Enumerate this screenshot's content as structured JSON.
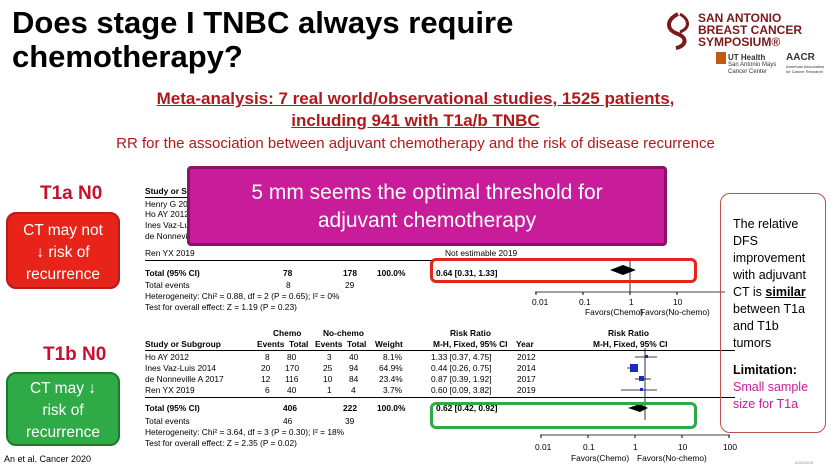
{
  "title": "Does stage I TNBC always require chemotherapy?",
  "logo": {
    "line1": "SAN ANTONIO",
    "line2": "BREAST CANCER",
    "line3": "SYMPOSIUM®",
    "ut_health": "UT Health",
    "ut_sub": "San Antonio Mays Cancer Center",
    "aacr": "AACR",
    "aacr_sub": "American Association for Cancer Research"
  },
  "subtitle": {
    "line1": "Meta-analysis: 7 real world/observational studies, 1525 patients,",
    "line2": "including 941 with T1a/b TNBC",
    "description": "RR for the association between adjuvant chemotherapy and the risk of disease recurrence"
  },
  "left": {
    "t1a_heading": "T1a N0",
    "t1a_box": [
      "CT may not",
      "↓ risk of",
      "recurrence"
    ],
    "t1b_heading": "T1b N0",
    "t1b_box": [
      "CT may ↓",
      "risk of",
      "recurrence"
    ]
  },
  "banner": {
    "line1": "5 mm seems the optimal threshold for",
    "line2": "adjuvant chemotherapy"
  },
  "right_box": {
    "text1": "The relative DFS improvement with adjuvant CT is",
    "similar": "similar",
    "text2": "between T1a and T1b tumors",
    "limitation_label": "Limitation:",
    "limitation_text": "Small sample size for T1a"
  },
  "forest_top": {
    "header_partial": "Study or S",
    "studies": [
      "Henry G 20",
      "Ho AY 2012",
      "Ines Vaz-Lu",
      "de Nonnevil",
      "Ren YX 2019"
    ],
    "not_estimable": "Not estimable  2019",
    "total_label": "Total (95% CI)",
    "total_chemo": "78",
    "total_nochemo": "178",
    "total_weight": "100.0%",
    "total_rr": "0.64 [0.31, 1.33]",
    "events_label": "Total events",
    "events_chemo": "8",
    "events_nochemo": "29",
    "heterogeneity": "Heterogeneity: Chi² = 0.88, df = 2 (P = 0.65); I² = 0%",
    "overall": "Test for overall effect: Z = 1.19 (P = 0.23)",
    "axis_ticks": [
      "0.01",
      "0.1",
      "1",
      "10"
    ],
    "favors_chemo": "Favors(Chemo)",
    "favors_nochemo": "Favors(No-chemo)"
  },
  "forest_bottom": {
    "group_chemo": "Chemo",
    "group_nochemo": "No-chemo",
    "group_rr": "Risk Ratio",
    "group_rr2": "Risk Ratio",
    "col_study": "Study or Subgroup",
    "col_events": "Events",
    "col_total": "Total",
    "col_events2": "Events",
    "col_total2": "Total",
    "col_weight": "Weight",
    "col_method": "M-H, Fixed, 95% CI",
    "col_year": "Year",
    "col_method2": "M-H, Fixed, 95% CI",
    "rows": [
      {
        "study": "Ho AY 2012",
        "e1": "8",
        "t1": "80",
        "e2": "3",
        "t2": "40",
        "w": "8.1%",
        "rr": "1.33 [0.37, 4.75]",
        "year": "2012"
      },
      {
        "study": "Ines Vaz-Luis 2014",
        "e1": "20",
        "t1": "170",
        "e2": "25",
        "t2": "94",
        "w": "64.9%",
        "rr": "0.44 [0.26, 0.75]",
        "year": "2014"
      },
      {
        "study": "de Nonneville A 2017",
        "e1": "12",
        "t1": "116",
        "e2": "10",
        "t2": "84",
        "w": "23.4%",
        "rr": "0.87 [0.39, 1.92]",
        "year": "2017"
      },
      {
        "study": "Ren YX 2019",
        "e1": "6",
        "t1": "40",
        "e2": "1",
        "t2": "4",
        "w": "3.7%",
        "rr": "0.60 [0.09, 3.82]",
        "year": "2019"
      }
    ],
    "total_label": "Total (95% CI)",
    "total_chemo": "406",
    "total_nochemo": "222",
    "total_weight": "100.0%",
    "total_rr": "0.62 [0.42, 0.92]",
    "events_label": "Total events",
    "events_chemo": "46",
    "events_nochemo": "39",
    "heterogeneity": "Heterogeneity: Chi² = 3.64, df = 3 (P = 0.30); I² = 18%",
    "overall": "Test for overall effect: Z = 2.35 (P = 0.02)",
    "axis_ticks": [
      "0.01",
      "0.1",
      "1",
      "10",
      "100"
    ],
    "favors_chemo": "Favors(Chemo)",
    "favors_nochemo": "Favors(No-chemo)"
  },
  "citation": "An et al. Cancer 2020",
  "code": "20201209",
  "colors": {
    "title_red": "#b0191c",
    "red_box": "#e8231a",
    "green_box": "#2eaa46",
    "banner": "#c91c9b"
  }
}
